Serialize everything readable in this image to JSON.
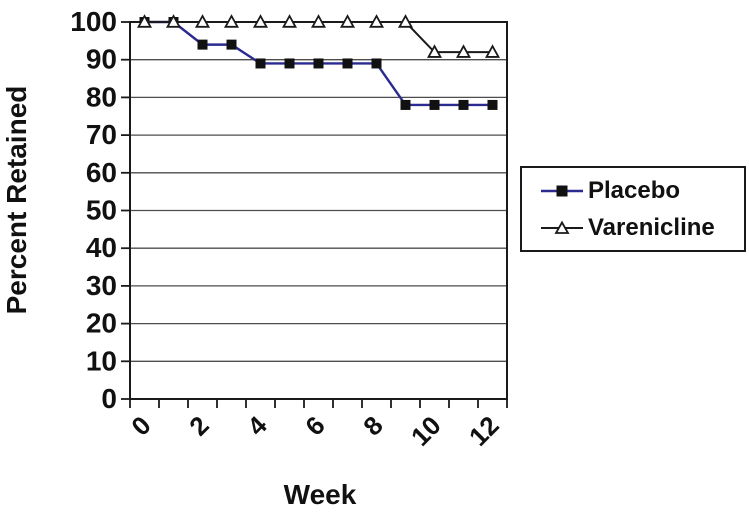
{
  "figure": {
    "background": "#ffffff"
  },
  "chart_data": {
    "type": "line",
    "x": [
      0,
      1,
      2,
      3,
      4,
      5,
      6,
      7,
      8,
      9,
      10,
      11,
      12
    ],
    "series": [
      {
        "name": "Placebo",
        "values": [
          100,
          100,
          94,
          94,
          89,
          89,
          89,
          89,
          89,
          78,
          78,
          78,
          78
        ],
        "line_color": "#2a2a8f",
        "marker": "filled-square",
        "marker_color": "#111111"
      },
      {
        "name": "Varenicline",
        "values": [
          100,
          100,
          100,
          100,
          100,
          100,
          100,
          100,
          100,
          100,
          92,
          92,
          92
        ],
        "line_color": "#1a1a1a",
        "marker": "open-triangle",
        "marker_color": "#1a1a1a"
      }
    ],
    "xlabel": "Week",
    "ylabel": "Percent Retained",
    "ylim": [
      0,
      100
    ],
    "ytick_step": 10,
    "ytick_labels": [
      "0",
      "10",
      "20",
      "30",
      "40",
      "50",
      "60",
      "70",
      "80",
      "90",
      "100"
    ],
    "xtick_labels": [
      "0",
      "2",
      "4",
      "6",
      "8",
      "10",
      "12"
    ],
    "xtick_label_every": 2,
    "grid": "horizontal",
    "legend_position": "right",
    "axis_color": "#1a1a1a",
    "grid_color": "#4d4d4d"
  }
}
